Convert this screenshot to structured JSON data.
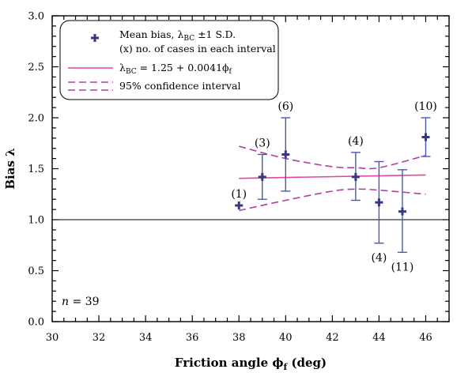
{
  "chart_data": {
    "type": "scatter",
    "xlabel": "Friction angle ϕ",
    "xlabel_sub": "f",
    "xlabel_suffix": " (deg)",
    "ylabel": "Bias λ",
    "xlim": [
      30,
      47
    ],
    "ylim": [
      0,
      3
    ],
    "x_ticks": [
      30,
      32,
      34,
      36,
      38,
      40,
      42,
      44,
      46
    ],
    "y_ticks": [
      0.0,
      0.5,
      1.0,
      1.5,
      2.0,
      2.5,
      3.0
    ],
    "x_tick_labels": [
      "30",
      "32",
      "34",
      "36",
      "38",
      "40",
      "42",
      "44",
      "46"
    ],
    "y_tick_labels": [
      "0.0",
      "0.5",
      "1.0",
      "1.5",
      "2.0",
      "2.5",
      "3.0"
    ],
    "reference_line_y": 1.0,
    "annotation_n": {
      "var": "n",
      "rest": " = 39"
    },
    "legend": {
      "placement": "top-left",
      "mean_line1": "Mean bias, λ",
      "mean_line1_sub": "BC",
      "mean_line1_rest": " ±1 S.D.",
      "mean_line2": "(x) no. of cases in each interval",
      "fit_prefix": "λ",
      "fit_sub": "BC",
      "fit_rest": " = 1.25 + 0.0041ϕ",
      "fit_sub2": "f",
      "ci_label": "95% confidence interval"
    },
    "points": [
      {
        "x": 38,
        "y": 1.14,
        "sd_low": 1.14,
        "sd_high": 1.14,
        "label": "(1)",
        "label_pos": "above"
      },
      {
        "x": 39,
        "y": 1.42,
        "sd_low": 1.2,
        "sd_high": 1.64,
        "label": "(3)",
        "label_pos": "above"
      },
      {
        "x": 40,
        "y": 1.64,
        "sd_low": 1.28,
        "sd_high": 2.0,
        "label": "(6)",
        "label_pos": "above"
      },
      {
        "x": 43,
        "y": 1.42,
        "sd_low": 1.19,
        "sd_high": 1.66,
        "label": "(4)",
        "label_pos": "above"
      },
      {
        "x": 44,
        "y": 1.17,
        "sd_low": 0.77,
        "sd_high": 1.57,
        "label": "(4)",
        "label_pos": "below"
      },
      {
        "x": 45,
        "y": 1.08,
        "sd_low": 0.68,
        "sd_high": 1.49,
        "label": "(11)",
        "label_pos": "below"
      },
      {
        "x": 46,
        "y": 1.81,
        "sd_low": 1.62,
        "sd_high": 2.0,
        "label": "(10)",
        "label_pos": "above"
      }
    ],
    "fit_line": {
      "intercept": 1.25,
      "slope": 0.0041,
      "x_range": [
        38,
        46
      ]
    },
    "ci_upper": [
      [
        38,
        1.72
      ],
      [
        40,
        1.6
      ],
      [
        42,
        1.52
      ],
      [
        43,
        1.51
      ],
      [
        44,
        1.51
      ],
      [
        46,
        1.63
      ]
    ],
    "ci_lower": [
      [
        38,
        1.09
      ],
      [
        40,
        1.19
      ],
      [
        42,
        1.28
      ],
      [
        43,
        1.3
      ],
      [
        44,
        1.29
      ],
      [
        46,
        1.25
      ]
    ],
    "colors": {
      "points": "#3a3680",
      "error_bars": "#4b57b5",
      "fit": "#e8449a",
      "ci": "#b03fa0",
      "axes": "#000000"
    }
  }
}
